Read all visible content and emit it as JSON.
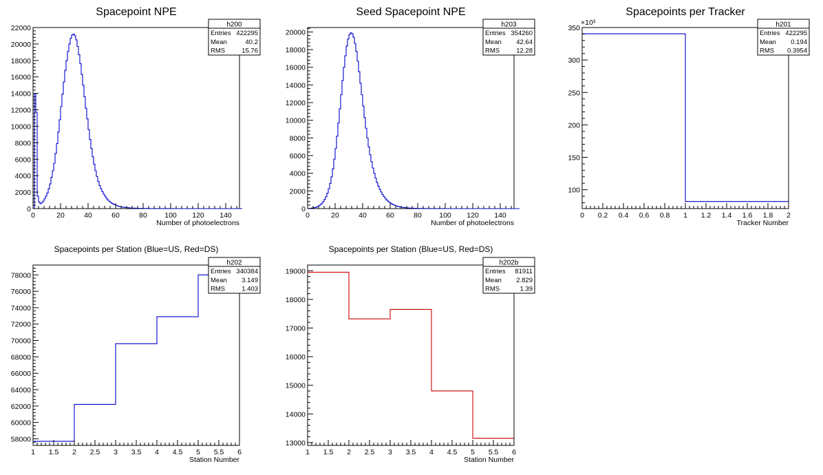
{
  "colors": {
    "blue": "#0000cc",
    "red": "#cc0000",
    "frame": "#000000",
    "background": "#ffffff"
  },
  "chart_data": [
    {
      "id": "h200",
      "type": "histogram",
      "title": "Spacepoint NPE",
      "xlabel": "Number of photoelectrons",
      "ylabel": "",
      "xlim": [
        0,
        150
      ],
      "ylim": [
        0,
        22000
      ],
      "x_ticks": [
        "0",
        "20",
        "40",
        "60",
        "80",
        "100",
        "120",
        "140"
      ],
      "y_ticks": [
        "0",
        "2000",
        "4000",
        "6000",
        "8000",
        "10000",
        "12000",
        "14000",
        "16000",
        "18000",
        "20000",
        "22000"
      ],
      "bin_start": 0,
      "bin_width": 1,
      "values": [
        0,
        14000,
        11700,
        1500,
        800,
        600,
        700,
        900,
        1200,
        1500,
        1900,
        2400,
        3000,
        3800,
        4600,
        5500,
        6700,
        7900,
        9300,
        10800,
        12400,
        13900,
        15400,
        16800,
        18000,
        19100,
        20000,
        20700,
        21100,
        21200,
        21000,
        20500,
        19700,
        18700,
        17600,
        16300,
        15000,
        13600,
        12200,
        10900,
        9600,
        8400,
        7300,
        6300,
        5400,
        4600,
        3900,
        3300,
        2800,
        2400,
        2050,
        1750,
        1500,
        1250,
        1050,
        900,
        760,
        640,
        540,
        460,
        390,
        330,
        280,
        240,
        205,
        175,
        150,
        128,
        110,
        95,
        82,
        71,
        62,
        54,
        47,
        41,
        36,
        32,
        28,
        25,
        22,
        19,
        17,
        15,
        13,
        11,
        10,
        9,
        8,
        7,
        6,
        5,
        5,
        4,
        4,
        3,
        3,
        3,
        2,
        2,
        2,
        2,
        2,
        1,
        1,
        1,
        1,
        1,
        1,
        1,
        1,
        1,
        1,
        1,
        0,
        0,
        0,
        0,
        0,
        0,
        0,
        0,
        0,
        0,
        0,
        0,
        0,
        0,
        0,
        0,
        0,
        0,
        0,
        0,
        0,
        0,
        0,
        0,
        0,
        0,
        0,
        0,
        0,
        0,
        0,
        0,
        0,
        0,
        0,
        0,
        0,
        0
      ],
      "color": "blue",
      "stats": {
        "name": "h200",
        "entries": "422295",
        "mean": "40.2",
        "rms": "15.76"
      }
    },
    {
      "id": "h203",
      "type": "histogram",
      "title": "Seed Spacepoint NPE",
      "xlabel": "Number of photoelectrons",
      "ylabel": "",
      "xlim": [
        0,
        150
      ],
      "ylim": [
        0,
        20500
      ],
      "x_ticks": [
        "0",
        "20",
        "40",
        "60",
        "80",
        "100",
        "120",
        "140"
      ],
      "y_ticks": [
        "0",
        "2000",
        "4000",
        "6000",
        "8000",
        "10000",
        "12000",
        "14000",
        "16000",
        "18000",
        "20000"
      ],
      "bin_start": 0,
      "bin_width": 1,
      "values": [
        0,
        30,
        40,
        60,
        80,
        120,
        170,
        240,
        330,
        450,
        600,
        800,
        1050,
        1350,
        1750,
        2250,
        2850,
        3600,
        4500,
        5600,
        6800,
        8200,
        9700,
        11300,
        12900,
        14500,
        16000,
        17300,
        18400,
        19200,
        19700,
        19900,
        19800,
        19400,
        18700,
        17800,
        16700,
        15500,
        14200,
        12900,
        11600,
        10300,
        9100,
        8000,
        7000,
        6100,
        5300,
        4600,
        4000,
        3450,
        2950,
        2550,
        2200,
        1880,
        1600,
        1370,
        1170,
        990,
        840,
        710,
        600,
        510,
        430,
        360,
        305,
        258,
        218,
        184,
        155,
        131,
        111,
        94,
        80,
        68,
        58,
        49,
        42,
        36,
        31,
        26,
        22,
        19,
        16,
        14,
        12,
        10,
        9,
        8,
        7,
        6,
        5,
        4,
        4,
        3,
        3,
        3,
        2,
        2,
        2,
        2,
        1,
        1,
        1,
        1,
        1,
        1,
        1,
        1,
        1,
        1,
        1,
        1,
        0,
        0,
        0,
        0,
        0,
        0,
        0,
        0,
        0,
        0,
        0,
        0,
        0,
        0,
        0,
        0,
        0,
        0,
        0,
        0,
        0,
        0,
        0,
        0,
        0,
        0,
        0,
        0,
        0,
        0,
        0,
        0,
        0,
        0,
        0,
        0,
        0,
        0,
        0,
        0,
        0,
        0
      ],
      "color": "blue",
      "stats": {
        "name": "h203",
        "entries": "354260",
        "mean": "42.64",
        "rms": "12.28"
      }
    },
    {
      "id": "h201",
      "type": "histogram",
      "title": "Spacepoints per Tracker",
      "xlabel": "Tracker Number",
      "ylabel": "",
      "xlim": [
        0,
        2
      ],
      "ylim": [
        71,
        350
      ],
      "y_exponent": "×10³",
      "x_ticks": [
        "0",
        "0.2",
        "0.4",
        "0.6",
        "0.8",
        "1",
        "1.2",
        "1.4",
        "1.6",
        "1.8",
        "2"
      ],
      "y_ticks": [
        "100",
        "150",
        "200",
        "250",
        "300",
        "350"
      ],
      "bin_start": 0,
      "bin_width": 1,
      "values": [
        340.4,
        81.9
      ],
      "color": "blue",
      "stats": {
        "name": "h201",
        "entries": "422295",
        "mean": "0.194",
        "rms": "0.3954"
      }
    },
    {
      "id": "h202",
      "type": "histogram",
      "title": "Spacepoints per Station (Blue=US, Red=DS)",
      "xlabel": "Station Number",
      "ylabel": "",
      "xlim": [
        1,
        6
      ],
      "ylim": [
        57200,
        79200
      ],
      "x_ticks": [
        "1",
        "1.5",
        "2",
        "2.5",
        "3",
        "3.5",
        "4",
        "4.5",
        "5",
        "5.5",
        "6"
      ],
      "y_ticks": [
        "58000",
        "60000",
        "62000",
        "64000",
        "66000",
        "68000",
        "70000",
        "72000",
        "74000",
        "76000",
        "78000"
      ],
      "bin_start": 1,
      "bin_width": 1,
      "values": [
        57700,
        62200,
        69600,
        72900,
        78000
      ],
      "color": "blue",
      "stats": {
        "name": "h202",
        "entries": "340384",
        "mean": "3.149",
        "rms": "1.403"
      }
    },
    {
      "id": "h202b",
      "type": "histogram",
      "title": "Spacepoints per Station (Blue=US, Red=DS)",
      "xlabel": "Station Number",
      "ylabel": "",
      "xlim": [
        1,
        6
      ],
      "ylim": [
        12900,
        19200
      ],
      "x_ticks": [
        "1",
        "1.5",
        "2",
        "2.5",
        "3",
        "3.5",
        "4",
        "4.5",
        "5",
        "5.5",
        "6"
      ],
      "y_ticks": [
        "13000",
        "14000",
        "15000",
        "16000",
        "17000",
        "18000",
        "19000"
      ],
      "bin_start": 1,
      "bin_width": 1,
      "values": [
        18950,
        17320,
        17650,
        14800,
        13150
      ],
      "color": "red",
      "stats": {
        "name": "h202b",
        "entries": "81911",
        "mean": "2.829",
        "rms": "1.39"
      }
    }
  ],
  "stats_labels": {
    "entries": "Entries",
    "mean": "Mean",
    "rms": "RMS"
  }
}
